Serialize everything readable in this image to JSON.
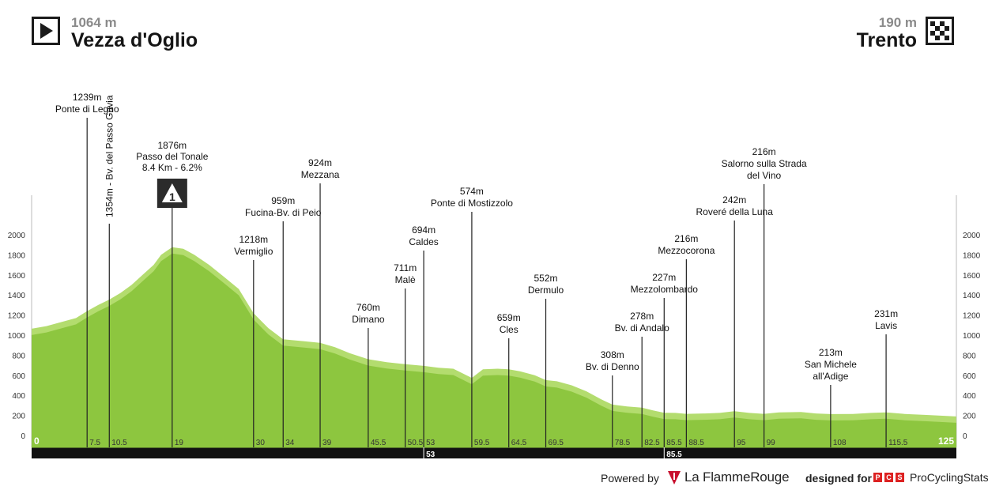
{
  "header": {
    "start": {
      "elevation": "1064 m",
      "name": "Vezza d'Oglio",
      "icon": "play-icon"
    },
    "finish": {
      "elevation": "190 m",
      "name": "Trento",
      "icon": "checkered-flag-icon"
    }
  },
  "chart_data": {
    "type": "area",
    "xlim": [
      0,
      125
    ],
    "ylim": [
      0,
      2000
    ],
    "yticks": [
      0,
      200,
      400,
      600,
      800,
      1000,
      1200,
      1400,
      1600,
      1800,
      2000
    ],
    "grid": false,
    "fill_color": "#8dc63f",
    "fill_light_color": "#b3dc6e",
    "profile": [
      [
        0,
        1064
      ],
      [
        2,
        1090
      ],
      [
        4,
        1130
      ],
      [
        6,
        1170
      ],
      [
        7.5,
        1239
      ],
      [
        9,
        1300
      ],
      [
        10.5,
        1354
      ],
      [
        12,
        1420
      ],
      [
        13.5,
        1500
      ],
      [
        15,
        1600
      ],
      [
        16.5,
        1700
      ],
      [
        17.5,
        1800
      ],
      [
        19,
        1876
      ],
      [
        20.5,
        1860
      ],
      [
        22,
        1800
      ],
      [
        24,
        1700
      ],
      [
        26,
        1580
      ],
      [
        28,
        1460
      ],
      [
        30,
        1218
      ],
      [
        32,
        1070
      ],
      [
        34,
        959
      ],
      [
        36,
        945
      ],
      [
        39,
        924
      ],
      [
        41,
        880
      ],
      [
        43,
        820
      ],
      [
        45.5,
        760
      ],
      [
        48,
        730
      ],
      [
        50.5,
        711
      ],
      [
        53,
        694
      ],
      [
        55,
        675
      ],
      [
        57,
        665
      ],
      [
        59.5,
        574
      ],
      [
        61,
        660
      ],
      [
        63,
        665
      ],
      [
        64.5,
        659
      ],
      [
        66,
        640
      ],
      [
        68,
        600
      ],
      [
        69.5,
        552
      ],
      [
        71,
        540
      ],
      [
        73,
        500
      ],
      [
        75,
        440
      ],
      [
        77,
        360
      ],
      [
        78.5,
        308
      ],
      [
        80.5,
        290
      ],
      [
        82.5,
        278
      ],
      [
        84,
        250
      ],
      [
        85.5,
        227
      ],
      [
        87,
        225
      ],
      [
        88.5,
        216
      ],
      [
        91,
        220
      ],
      [
        93,
        225
      ],
      [
        95,
        242
      ],
      [
        97,
        225
      ],
      [
        99,
        216
      ],
      [
        101,
        230
      ],
      [
        104,
        235
      ],
      [
        106,
        220
      ],
      [
        108,
        213
      ],
      [
        111,
        215
      ],
      [
        113.5,
        225
      ],
      [
        115.5,
        231
      ],
      [
        118,
        215
      ],
      [
        121,
        205
      ],
      [
        125,
        190
      ]
    ],
    "stage_km_labels": [
      "53",
      "85.5"
    ],
    "start_km_label": "0",
    "finish_km_label": "125",
    "climb": {
      "km": 19,
      "number": "1",
      "elevation": "1876m",
      "name": "Passo del Tonale",
      "detail": "8.4 Km - 6.2%"
    },
    "waypoints": [
      {
        "km": 7.5,
        "km_label": "7.5",
        "elevation": "1239m",
        "name": "Ponte di Legno"
      },
      {
        "km": 10.5,
        "km_label": "10.5",
        "vertical": "1354m - Bv. del Passo Gavia"
      },
      {
        "km": 19,
        "km_label": "19"
      },
      {
        "km": 30,
        "km_label": "30",
        "elevation": "1218m",
        "name": "Vermiglio"
      },
      {
        "km": 34,
        "km_label": "34",
        "elevation": "959m",
        "name": "Fucina-Bv. di Peio"
      },
      {
        "km": 39,
        "km_label": "39",
        "elevation": "924m",
        "name": "Mezzana"
      },
      {
        "km": 45.5,
        "km_label": "45.5",
        "elevation": "760m",
        "name": "Dimano"
      },
      {
        "km": 50.5,
        "km_label": "50.5",
        "elevation": "711m",
        "name": "Malè"
      },
      {
        "km": 53,
        "km_label": "53",
        "elevation": "694m",
        "name": "Caldes"
      },
      {
        "km": 59.5,
        "km_label": "59.5",
        "elevation": "574m",
        "name": "Ponte di Mostizzolo"
      },
      {
        "km": 64.5,
        "km_label": "64.5",
        "elevation": "659m",
        "name": "Cles"
      },
      {
        "km": 69.5,
        "km_label": "69.5",
        "elevation": "552m",
        "name": "Dermulo"
      },
      {
        "km": 78.5,
        "km_label": "78.5",
        "elevation": "308m",
        "name": "Bv. di Denno"
      },
      {
        "km": 82.5,
        "km_label": "82.5",
        "elevation": "278m",
        "name": "Bv. di Andalo"
      },
      {
        "km": 85.5,
        "km_label": "85.5",
        "elevation": "227m",
        "name": "Mezzolombardo"
      },
      {
        "km": 88.5,
        "km_label": "88.5",
        "elevation": "216m",
        "name": "Mezzocorona"
      },
      {
        "km": 95,
        "km_label": "95",
        "elevation": "242m",
        "name": "Roveré della Luna"
      },
      {
        "km": 99,
        "km_label": "99",
        "elevation": "216m",
        "name": "Salorno sulla Strada del Vino"
      },
      {
        "km": 108,
        "km_label": "108",
        "elevation": "213m",
        "name": "San Michele all'Adige"
      },
      {
        "km": 115.5,
        "km_label": "115.5",
        "elevation": "231m",
        "name": "Lavis"
      }
    ]
  },
  "footer": {
    "powered_by": "Powered by",
    "flamme_rouge": "La FlammeRouge",
    "designed_for": "designed for",
    "pcs_letters": [
      "P",
      "C",
      "S"
    ],
    "pcs_name": "ProCyclingStats"
  }
}
